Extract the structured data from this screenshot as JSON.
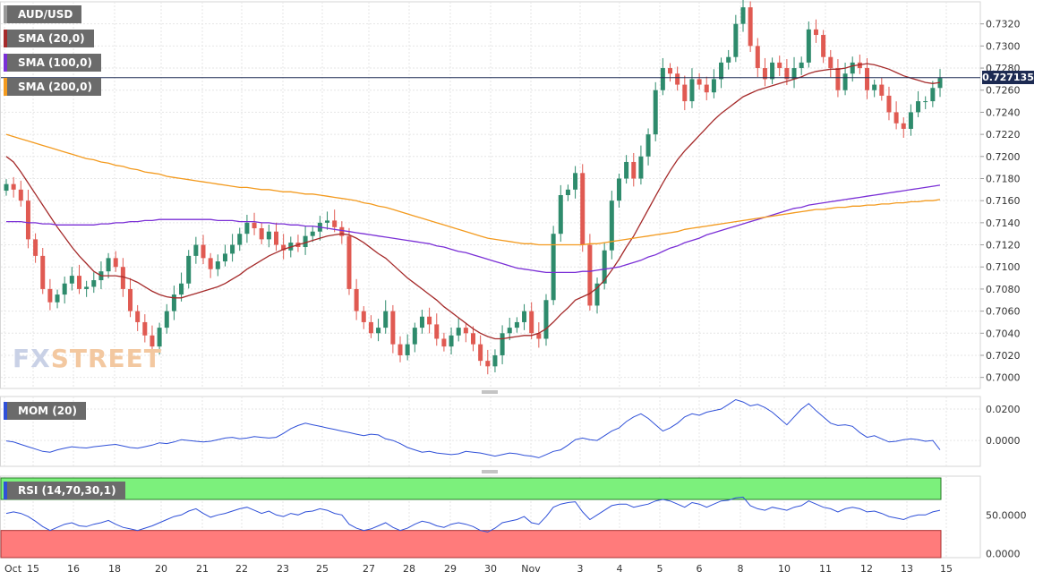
{
  "symbol_tag": "AUD/USD",
  "indicator_tags": {
    "sma20": "SMA (20,0)",
    "sma100": "SMA (100,0)",
    "sma200": "SMA (200,0)",
    "mom": "MOM (20)",
    "rsi": "RSI (14,70,30,1)"
  },
  "logo": {
    "fx": "FX",
    "street": "STREET"
  },
  "last_price_label": "0.727135",
  "colors": {
    "bull": "#2e8b6c",
    "bear": "#e05a52",
    "sma20": "#a52a2a",
    "sma100": "#7a2fd6",
    "sma200": "#f39a1e",
    "mom_line": "#2f50d8",
    "rsi_line": "#2f50d8",
    "rsi_overbought": "#7cf07c",
    "rsi_oversold": "#ff7b7b",
    "price_line": "#1c2a52"
  },
  "chart_data": [
    {
      "type": "candlestick",
      "title": "AUD/USD",
      "ylim": [
        0.699,
        0.734
      ],
      "y_ticks": [
        "0.7000",
        "0.7020",
        "0.7040",
        "0.7060",
        "0.7080",
        "0.7100",
        "0.7120",
        "0.7140",
        "0.7160",
        "0.7180",
        "0.7200",
        "0.7220",
        "0.7240",
        "0.7260",
        "0.7280",
        "0.7300",
        "0.7320"
      ],
      "x_ticks": [
        "Oct",
        "15",
        "16",
        "18",
        "20",
        "21",
        "22",
        "23",
        "25",
        "27",
        "28",
        "29",
        "30",
        "Nov",
        "3",
        "4",
        "5",
        "6",
        "8",
        "10",
        "11",
        "12",
        "13",
        "15"
      ],
      "last_price": 0.727135,
      "close": [
        0.7175,
        0.717,
        0.716,
        0.7125,
        0.711,
        0.708,
        0.7068,
        0.7075,
        0.7085,
        0.7092,
        0.708,
        0.7082,
        0.7088,
        0.7096,
        0.7108,
        0.71,
        0.708,
        0.706,
        0.705,
        0.7038,
        0.7028,
        0.7045,
        0.706,
        0.7075,
        0.7085,
        0.711,
        0.712,
        0.7108,
        0.7098,
        0.7105,
        0.7112,
        0.712,
        0.713,
        0.714,
        0.7135,
        0.7125,
        0.7132,
        0.712,
        0.7115,
        0.7122,
        0.7118,
        0.7128,
        0.7132,
        0.714,
        0.7142,
        0.7136,
        0.7128,
        0.708,
        0.706,
        0.705,
        0.704,
        0.7045,
        0.706,
        0.703,
        0.702,
        0.703,
        0.7045,
        0.7055,
        0.7048,
        0.7035,
        0.7028,
        0.7038,
        0.7045,
        0.704,
        0.703,
        0.7015,
        0.701,
        0.702,
        0.704,
        0.7045,
        0.705,
        0.706,
        0.704,
        0.7035,
        0.707,
        0.713,
        0.7165,
        0.717,
        0.7185,
        0.712,
        0.7065,
        0.7085,
        0.7115,
        0.716,
        0.718,
        0.7195,
        0.718,
        0.72,
        0.722,
        0.726,
        0.728,
        0.7275,
        0.7265,
        0.725,
        0.727,
        0.7265,
        0.7258,
        0.727,
        0.7285,
        0.729,
        0.732,
        0.7335,
        0.73,
        0.728,
        0.727,
        0.7285,
        0.728,
        0.727,
        0.728,
        0.7285,
        0.7315,
        0.731,
        0.729,
        0.728,
        0.726,
        0.7275,
        0.7285,
        0.728,
        0.726,
        0.7265,
        0.7255,
        0.724,
        0.723,
        0.7225,
        0.724,
        0.725,
        0.725,
        0.7262,
        0.7271
      ],
      "series": [
        {
          "name": "SMA (20,0)",
          "values": [
            0.72,
            0.7195,
            0.7186,
            0.7176,
            0.7166,
            0.7156,
            0.7146,
            0.7136,
            0.7127,
            0.7118,
            0.711,
            0.7103,
            0.7096,
            0.7092,
            0.7092,
            0.7092,
            0.7091,
            0.7089,
            0.7086,
            0.7082,
            0.7078,
            0.7075,
            0.7073,
            0.7072,
            0.7072,
            0.7074,
            0.7076,
            0.7078,
            0.708,
            0.7082,
            0.7085,
            0.7089,
            0.7093,
            0.7098,
            0.7102,
            0.7106,
            0.711,
            0.7113,
            0.7116,
            0.7118,
            0.712,
            0.7122,
            0.7124,
            0.7126,
            0.7128,
            0.7129,
            0.713,
            0.7129,
            0.7126,
            0.7122,
            0.7117,
            0.7112,
            0.7108,
            0.7102,
            0.7096,
            0.709,
            0.7085,
            0.708,
            0.7075,
            0.707,
            0.7064,
            0.7059,
            0.7054,
            0.7049,
            0.7044,
            0.704,
            0.7037,
            0.7035,
            0.7035,
            0.7036,
            0.7037,
            0.7038,
            0.7038,
            0.704,
            0.7044,
            0.705,
            0.7057,
            0.7063,
            0.707,
            0.7073,
            0.7076,
            0.7081,
            0.7088,
            0.7097,
            0.7107,
            0.7118,
            0.7128,
            0.714,
            0.7152,
            0.7164,
            0.7176,
            0.7187,
            0.7197,
            0.7205,
            0.7212,
            0.7219,
            0.7226,
            0.7233,
            0.7239,
            0.7244,
            0.7249,
            0.7254,
            0.7257,
            0.726,
            0.7262,
            0.7264,
            0.7266,
            0.7268,
            0.727,
            0.7272,
            0.7275,
            0.7277,
            0.7278,
            0.7279,
            0.7279,
            0.728,
            0.7282,
            0.7283,
            0.7284,
            0.7283,
            0.7281,
            0.7279,
            0.7276,
            0.7273,
            0.7271,
            0.7269,
            0.7267,
            0.7266,
            0.7267
          ]
        },
        {
          "name": "SMA (100,0)",
          "values": [
            0.7141,
            0.7141,
            0.7141,
            0.714,
            0.714,
            0.7139,
            0.7139,
            0.7138,
            0.7138,
            0.7138,
            0.7138,
            0.7138,
            0.7138,
            0.7139,
            0.7139,
            0.714,
            0.714,
            0.7141,
            0.7141,
            0.7142,
            0.7142,
            0.7143,
            0.7143,
            0.7143,
            0.7143,
            0.7143,
            0.7143,
            0.7143,
            0.7143,
            0.7142,
            0.7142,
            0.7142,
            0.7141,
            0.7141,
            0.7141,
            0.714,
            0.714,
            0.7139,
            0.7139,
            0.7138,
            0.7138,
            0.7137,
            0.7137,
            0.7136,
            0.7135,
            0.7134,
            0.7133,
            0.7132,
            0.7131,
            0.713,
            0.7129,
            0.7128,
            0.7127,
            0.7126,
            0.7125,
            0.7124,
            0.7123,
            0.7122,
            0.7121,
            0.7119,
            0.7118,
            0.7116,
            0.7114,
            0.7113,
            0.7111,
            0.7109,
            0.7107,
            0.7105,
            0.7103,
            0.7101,
            0.7099,
            0.7098,
            0.7097,
            0.7096,
            0.7095,
            0.7095,
            0.7095,
            0.7095,
            0.7095,
            0.7096,
            0.7096,
            0.7097,
            0.7098,
            0.7099,
            0.71,
            0.7102,
            0.7104,
            0.7106,
            0.7109,
            0.7111,
            0.7114,
            0.7117,
            0.7119,
            0.7122,
            0.7124,
            0.7126,
            0.7129,
            0.7131,
            0.7133,
            0.7135,
            0.7137,
            0.7139,
            0.7141,
            0.7143,
            0.7145,
            0.7147,
            0.7149,
            0.7151,
            0.7153,
            0.7154,
            0.7156,
            0.7157,
            0.7158,
            0.7159,
            0.716,
            0.7161,
            0.7162,
            0.7163,
            0.7164,
            0.7165,
            0.7166,
            0.7167,
            0.7168,
            0.7169,
            0.717,
            0.7171,
            0.7172,
            0.7173,
            0.7174
          ]
        },
        {
          "name": "SMA (200,0)",
          "values": [
            0.722,
            0.7218,
            0.7216,
            0.7214,
            0.7212,
            0.721,
            0.7208,
            0.7206,
            0.7204,
            0.7202,
            0.72,
            0.7198,
            0.7197,
            0.7195,
            0.7194,
            0.7192,
            0.7191,
            0.7189,
            0.7188,
            0.7186,
            0.7185,
            0.7184,
            0.7182,
            0.7181,
            0.718,
            0.7179,
            0.7178,
            0.7177,
            0.7176,
            0.7175,
            0.7174,
            0.7173,
            0.7172,
            0.7172,
            0.7171,
            0.717,
            0.717,
            0.7169,
            0.7168,
            0.7168,
            0.7167,
            0.7166,
            0.7166,
            0.7165,
            0.7164,
            0.7163,
            0.7162,
            0.7161,
            0.716,
            0.7158,
            0.7157,
            0.7155,
            0.7154,
            0.7152,
            0.715,
            0.7148,
            0.7146,
            0.7144,
            0.7142,
            0.714,
            0.7138,
            0.7136,
            0.7134,
            0.7132,
            0.713,
            0.7128,
            0.7126,
            0.7125,
            0.7124,
            0.7123,
            0.7122,
            0.7121,
            0.7121,
            0.712,
            0.712,
            0.712,
            0.712,
            0.712,
            0.712,
            0.712,
            0.7121,
            0.7121,
            0.7122,
            0.7123,
            0.7124,
            0.7125,
            0.7126,
            0.7127,
            0.7128,
            0.7129,
            0.713,
            0.7131,
            0.7132,
            0.7134,
            0.7135,
            0.7136,
            0.7137,
            0.7138,
            0.7139,
            0.714,
            0.7141,
            0.7142,
            0.7143,
            0.7144,
            0.7145,
            0.7146,
            0.7147,
            0.7148,
            0.7149,
            0.715,
            0.7151,
            0.7152,
            0.7152,
            0.7153,
            0.7154,
            0.7154,
            0.7155,
            0.7155,
            0.7156,
            0.7156,
            0.7157,
            0.7157,
            0.7158,
            0.7158,
            0.7159,
            0.7159,
            0.716,
            0.716,
            0.7161
          ]
        }
      ]
    },
    {
      "type": "line",
      "title": "MOM (20)",
      "ylim": [
        -0.0165,
        0.028
      ],
      "y_ticks": [
        "0.0200",
        "0.0000"
      ],
      "values": [
        -0.0003,
        -0.001,
        -0.0025,
        -0.004,
        -0.0055,
        -0.007,
        -0.0075,
        -0.006,
        -0.005,
        -0.004,
        -0.0045,
        -0.0048,
        -0.004,
        -0.0035,
        -0.003,
        -0.0025,
        -0.0035,
        -0.0045,
        -0.005,
        -0.004,
        -0.003,
        -0.0015,
        -0.002,
        -0.001,
        0.0005,
        0.0,
        -0.0005,
        -0.001,
        -0.0005,
        0.0005,
        0.0015,
        0.002,
        0.001,
        0.0015,
        0.0025,
        0.002,
        0.0015,
        0.002,
        0.0045,
        0.0075,
        0.0095,
        0.011,
        0.01,
        0.009,
        0.008,
        0.007,
        0.006,
        0.005,
        0.004,
        0.003,
        0.004,
        0.0035,
        0.001,
        0.0,
        -0.002,
        -0.0045,
        -0.006,
        -0.0075,
        -0.007,
        -0.008,
        -0.0085,
        -0.009,
        -0.0085,
        -0.007,
        -0.0075,
        -0.008,
        -0.009,
        -0.01,
        -0.009,
        -0.008,
        -0.0085,
        -0.0095,
        -0.01,
        -0.011,
        -0.009,
        -0.007,
        -0.006,
        -0.003,
        0.0005,
        0.0015,
        0.0005,
        0.0,
        0.003,
        0.006,
        0.008,
        0.012,
        0.015,
        0.017,
        0.014,
        0.01,
        0.006,
        0.008,
        0.011,
        0.015,
        0.017,
        0.016,
        0.018,
        0.019,
        0.02,
        0.023,
        0.026,
        0.0245,
        0.022,
        0.023,
        0.021,
        0.018,
        0.014,
        0.01,
        0.015,
        0.02,
        0.0235,
        0.019,
        0.015,
        0.011,
        0.0095,
        0.01,
        0.009,
        0.005,
        0.002,
        0.003,
        0.001,
        -0.001,
        -0.0005,
        0.0005,
        0.001,
        0.0005,
        -0.0005,
        0.0,
        -0.006
      ]
    },
    {
      "type": "line",
      "title": "RSI (14,70,30,1)",
      "ylim": [
        -5,
        100
      ],
      "y_ticks": [
        "50.0000",
        "0.0000"
      ],
      "overbought": 70,
      "oversold": 30,
      "values": [
        52,
        54,
        52,
        48,
        42,
        35,
        30,
        34,
        38,
        40,
        36,
        35,
        38,
        40,
        43,
        38,
        34,
        32,
        30,
        33,
        36,
        40,
        44,
        48,
        50,
        55,
        58,
        52,
        47,
        50,
        52,
        55,
        58,
        60,
        56,
        52,
        55,
        50,
        48,
        52,
        50,
        54,
        55,
        58,
        56,
        52,
        50,
        38,
        33,
        30,
        32,
        36,
        40,
        34,
        30,
        33,
        38,
        42,
        40,
        36,
        34,
        38,
        40,
        38,
        35,
        30,
        28,
        33,
        40,
        42,
        44,
        48,
        40,
        38,
        48,
        60,
        64,
        66,
        67,
        54,
        44,
        50,
        56,
        62,
        64,
        64,
        60,
        62,
        64,
        68,
        70,
        68,
        64,
        60,
        66,
        64,
        60,
        64,
        68,
        69,
        72,
        73,
        62,
        58,
        56,
        60,
        58,
        56,
        60,
        62,
        68,
        64,
        60,
        58,
        54,
        58,
        60,
        58,
        54,
        55,
        52,
        48,
        46,
        44,
        48,
        50,
        50,
        54,
        56
      ]
    }
  ]
}
